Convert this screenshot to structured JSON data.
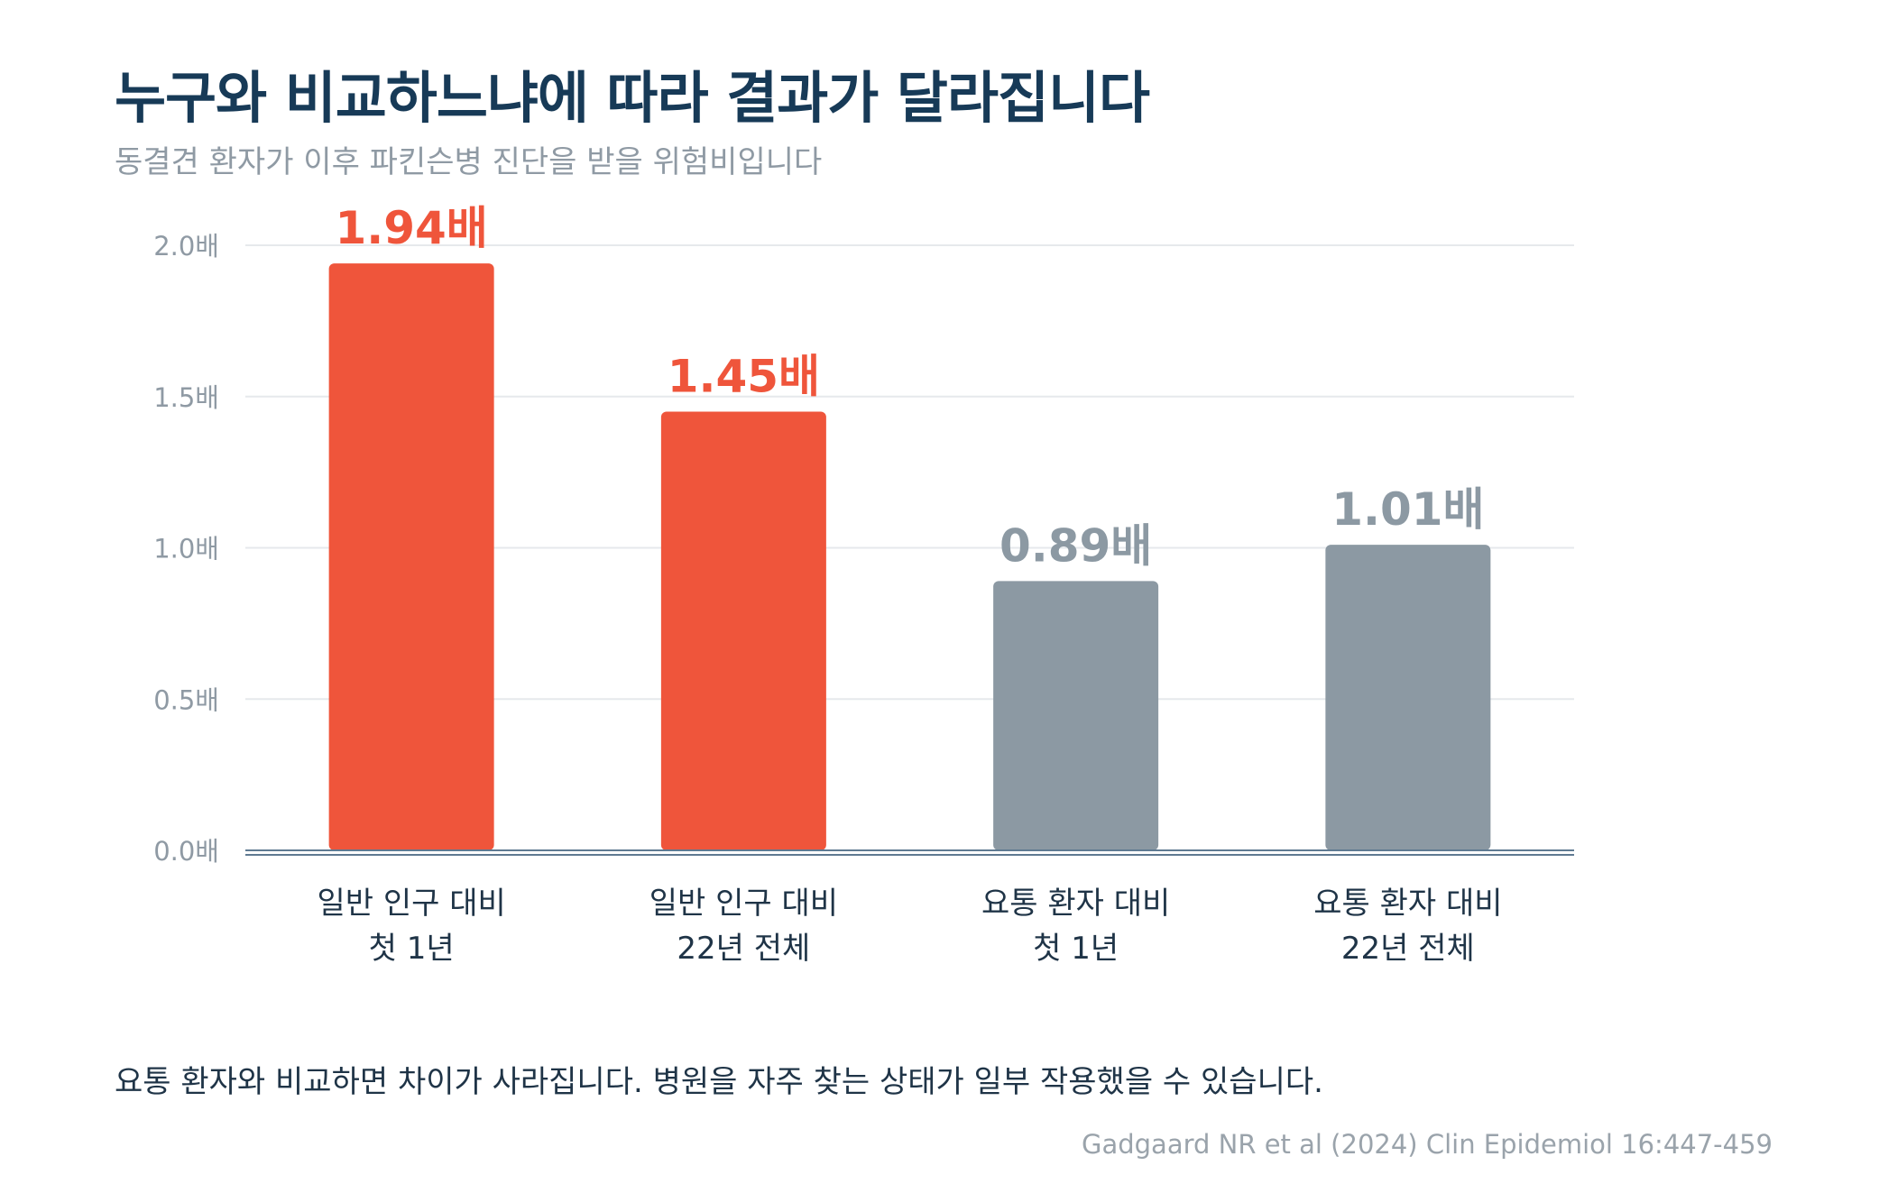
{
  "title": "누구와 비교하느냐에 따라 결과가 달라집니다",
  "subtitle": "동결견 환자가 이후 파킨슨병 진단을 받을 위험비입니다",
  "note": "요통 환자와 비교하면 차이가 사라집니다. 병원을 자주 찾는 상태가 일부 작용했을 수 있습니다.",
  "source": "Gadgaard NR et al (2024) Clin Epidemiol 16:447-459",
  "colors": {
    "highlight": "#ef553b",
    "neutral": "#8c99a3",
    "grid": "#e6e9ec",
    "baseline": "#5f7a92",
    "tick": "#8f9aa4",
    "category": "#1f3447"
  },
  "chart_data": {
    "type": "bar",
    "categories": [
      [
        "일반 인구 대비",
        "첫 1년"
      ],
      [
        "일반 인구 대비",
        "22년 전체"
      ],
      [
        "요통 환자 대비",
        "첫 1년"
      ],
      [
        "요통 환자 대비",
        "22년 전체"
      ]
    ],
    "values": [
      1.94,
      1.45,
      0.89,
      1.01
    ],
    "value_labels": [
      "1.94배",
      "1.45배",
      "0.89배",
      "1.01배"
    ],
    "bar_colors": [
      "#ef553b",
      "#ef553b",
      "#8c99a3",
      "#8c99a3"
    ],
    "ylim": [
      0,
      2.0
    ],
    "yticks": [
      0.0,
      0.5,
      1.0,
      1.5,
      2.0
    ],
    "ytick_labels": [
      "0.0배",
      "0.5배",
      "1.0배",
      "1.5배",
      "2.0배"
    ],
    "grid": true,
    "legend": "none"
  }
}
